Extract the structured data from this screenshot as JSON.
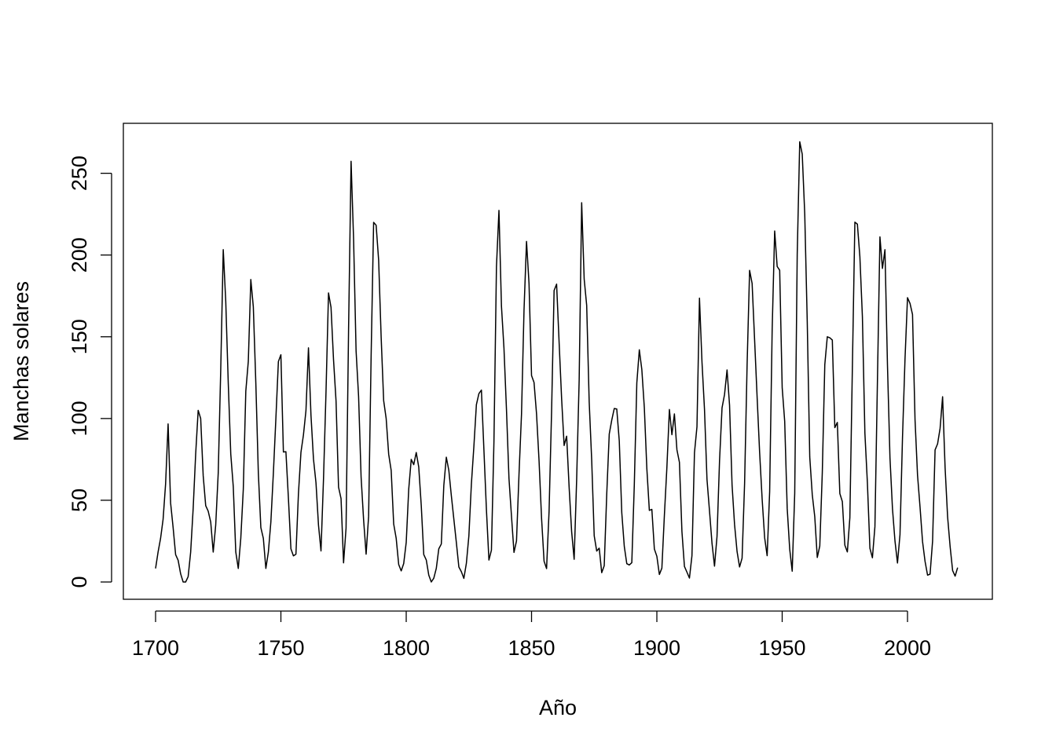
{
  "chart_data": {
    "type": "line",
    "title": "",
    "xlabel": "Año",
    "ylabel": "Manchas solares",
    "xlim": [
      1700,
      2021
    ],
    "ylim": [
      0,
      270
    ],
    "xticks": [
      1700,
      1750,
      1800,
      1850,
      1900,
      1950,
      2000
    ],
    "yticks": [
      0,
      50,
      100,
      150,
      200,
      250
    ],
    "x_start": 1700,
    "x_step": 1,
    "grid": false,
    "legend": "none",
    "line_color": "#000000",
    "series": [
      {
        "values": [
          8.3,
          18.3,
          26.7,
          38.3,
          60.0,
          96.7,
          48.3,
          33.3,
          16.7,
          13.3,
          5.0,
          0.0,
          0.0,
          3.3,
          18.3,
          45.0,
          78.3,
          105.0,
          100.0,
          65.0,
          46.7,
          43.3,
          36.7,
          18.3,
          35.0,
          66.7,
          130.0,
          203.3,
          171.7,
          121.7,
          78.3,
          58.3,
          18.3,
          8.3,
          26.7,
          56.7,
          116.7,
          135.0,
          185.0,
          168.3,
          121.7,
          66.7,
          33.3,
          26.7,
          8.3,
          18.3,
          36.7,
          66.7,
          100.0,
          134.8,
          139.0,
          79.5,
          79.7,
          51.2,
          20.3,
          16.0,
          17.0,
          54.0,
          79.3,
          90.0,
          104.8,
          143.2,
          102.0,
          75.2,
          60.7,
          34.8,
          19.0,
          63.0,
          116.3,
          176.8,
          168.0,
          136.0,
          110.8,
          58.0,
          51.0,
          11.7,
          33.0,
          154.2,
          257.3,
          209.8,
          141.3,
          113.5,
          64.2,
          38.0,
          17.0,
          40.2,
          138.2,
          220.0,
          218.2,
          196.8,
          149.8,
          111.0,
          100.0,
          78.2,
          68.3,
          35.5,
          26.7,
          10.7,
          6.8,
          11.3,
          24.2,
          56.7,
          75.0,
          71.8,
          79.2,
          70.3,
          46.8,
          16.8,
          13.5,
          4.2,
          0.0,
          2.3,
          8.3,
          20.3,
          23.2,
          59.0,
          76.3,
          68.3,
          52.9,
          38.5,
          24.2,
          9.2,
          6.3,
          2.2,
          11.4,
          28.2,
          59.9,
          83.0,
          108.5,
          115.2,
          117.4,
          80.8,
          44.3,
          13.4,
          19.5,
          85.8,
          192.7,
          227.3,
          168.7,
          143.0,
          105.5,
          63.3,
          40.3,
          18.1,
          25.1,
          65.8,
          102.7,
          166.3,
          208.3,
          182.5,
          126.3,
          122.0,
          102.7,
          74.1,
          39.0,
          12.7,
          8.2,
          43.4,
          104.4,
          178.3,
          182.2,
          146.6,
          112.1,
          83.5,
          89.2,
          57.8,
          30.7,
          13.9,
          62.8,
          123.6,
          232.0,
          185.3,
          169.2,
          110.1,
          74.5,
          28.3,
          18.9,
          20.7,
          5.7,
          10.0,
          53.7,
          90.5,
          99.0,
          106.1,
          105.8,
          86.3,
          42.4,
          21.8,
          11.2,
          10.4,
          11.8,
          59.5,
          121.7,
          142.0,
          130.0,
          106.6,
          69.4,
          43.8,
          44.4,
          20.2,
          15.7,
          4.6,
          8.5,
          40.8,
          70.1,
          105.5,
          90.1,
          102.8,
          80.9,
          73.2,
          30.9,
          9.5,
          6.0,
          2.4,
          16.1,
          79.0,
          95.0,
          173.6,
          134.6,
          105.7,
          62.7,
          43.5,
          23.7,
          9.7,
          27.9,
          74.0,
          106.5,
          114.7,
          129.7,
          108.2,
          59.4,
          35.1,
          18.6,
          9.2,
          14.6,
          60.2,
          132.8,
          190.6,
          182.6,
          148.0,
          113.0,
          79.2,
          50.8,
          27.1,
          16.1,
          55.3,
          154.3,
          214.7,
          193.0,
          190.7,
          118.9,
          98.3,
          45.0,
          20.1,
          6.6,
          54.2,
          200.7,
          269.3,
          261.7,
          225.1,
          159.0,
          76.4,
          53.4,
          39.9,
          15.0,
          22.0,
          66.8,
          132.9,
          150.0,
          149.4,
          148.0,
          94.4,
          97.6,
          54.1,
          49.2,
          22.5,
          18.4,
          39.3,
          131.0,
          220.1,
          218.9,
          198.9,
          162.4,
          91.0,
          60.5,
          20.6,
          14.8,
          33.9,
          123.0,
          211.1,
          191.8,
          203.3,
          133.0,
          76.1,
          44.9,
          25.1,
          11.6,
          28.9,
          88.3,
          136.3,
          173.9,
          170.4,
          163.6,
          99.3,
          65.3,
          45.8,
          24.7,
          12.6,
          4.2,
          4.8,
          24.9,
          80.8,
          84.5,
          94.0,
          113.3,
          69.8,
          39.8,
          21.7,
          7.0,
          3.6,
          8.8
        ]
      }
    ]
  }
}
